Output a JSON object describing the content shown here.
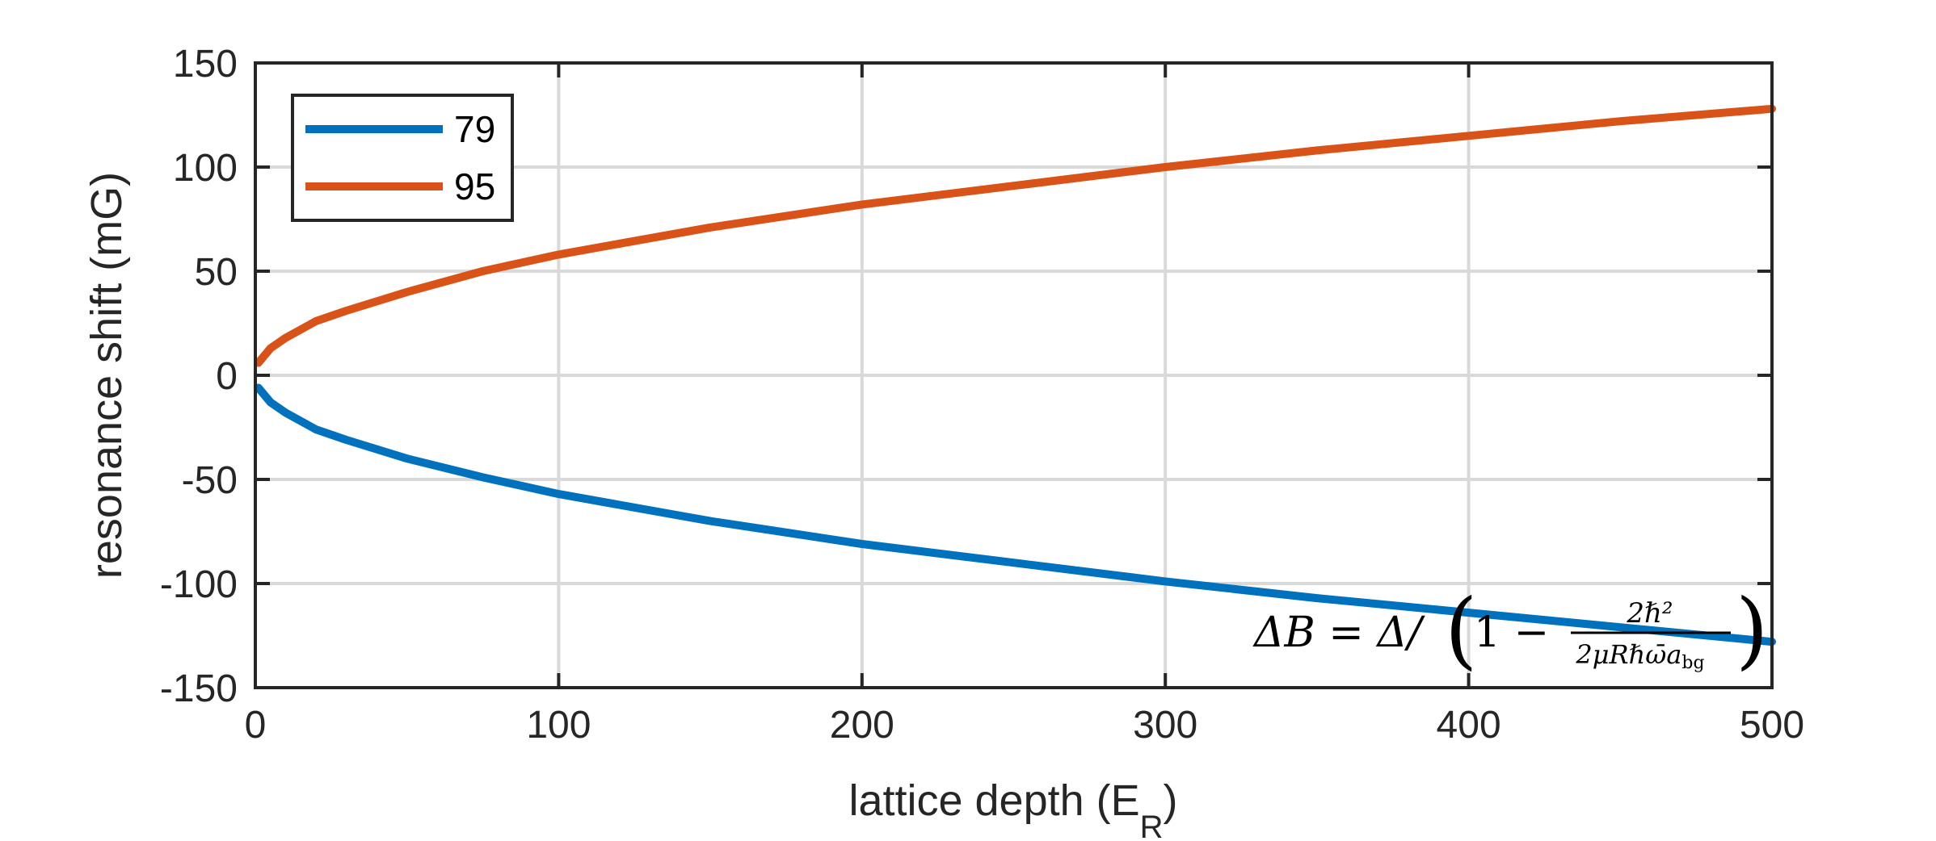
{
  "chart_data": {
    "type": "line",
    "title": "",
    "xlabel_main": "lattice depth (E",
    "xlabel_sub": "R",
    "xlabel_close": ")",
    "ylabel": "resonance shift (mG)",
    "xlim": [
      0,
      500
    ],
    "ylim": [
      -150,
      150
    ],
    "xticks": [
      0,
      100,
      200,
      300,
      400,
      500
    ],
    "yticks": [
      -150,
      -100,
      -50,
      0,
      50,
      100,
      150
    ],
    "xtick_labels": [
      "0",
      "100",
      "200",
      "300",
      "400",
      "500"
    ],
    "ytick_labels": [
      "-150",
      "-100",
      "-50",
      "0",
      "50",
      "100",
      "150"
    ],
    "grid": true,
    "legend_position": "top-left",
    "series": [
      {
        "name": "79",
        "color": "#0072BD",
        "x": [
          1,
          5,
          10,
          20,
          30,
          50,
          75,
          100,
          150,
          200,
          250,
          300,
          350,
          400,
          450,
          500
        ],
        "y": [
          -6,
          -13,
          -18,
          -26,
          -31,
          -40,
          -49,
          -57,
          -70,
          -81,
          -90,
          -99,
          -107,
          -114,
          -121,
          -128
        ]
      },
      {
        "name": "95",
        "color": "#D95319",
        "x": [
          1,
          5,
          10,
          20,
          30,
          50,
          75,
          100,
          150,
          200,
          250,
          300,
          350,
          400,
          450,
          500
        ],
        "y": [
          6,
          13,
          18,
          26,
          31,
          40,
          50,
          58,
          71,
          82,
          91,
          100,
          108,
          115,
          122,
          128
        ]
      }
    ],
    "annotation": {
      "lhs": "ΔB = Δ/",
      "one_minus": "1 −",
      "numerator": "2ℏ²",
      "denominator_main": "2μRℏω̄a",
      "denominator_sub": "bg"
    }
  }
}
